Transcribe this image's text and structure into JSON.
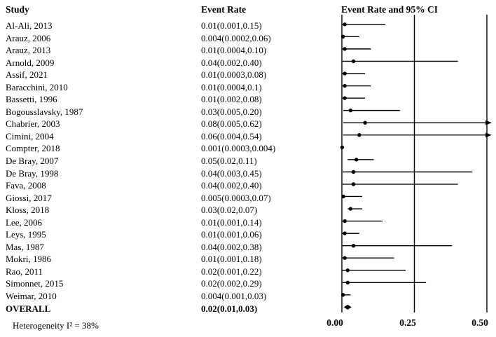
{
  "headers": {
    "study": "Study",
    "event_rate": "Event Rate",
    "plot": "Event Rate and 95% CI"
  },
  "footer": {
    "heterogeneity": "Heterogeneity I² = 38%"
  },
  "colors": {
    "ink": "#000000",
    "background": "#ffffff"
  },
  "chart_data": {
    "type": "forest",
    "title": "Event Rate and 95% CI",
    "axis": {
      "xlim": [
        0.0,
        0.5
      ],
      "ticks": [
        0.0,
        0.25,
        0.5
      ],
      "tick_labels": [
        "0.00",
        "0.25",
        "0.50"
      ],
      "clip_arrow_beyond": 0.5
    },
    "studies": [
      {
        "label": "Al-Ali, 2013",
        "text": "0.01(0.001,0.15)",
        "rate": 0.01,
        "lo": 0.001,
        "hi": 0.15
      },
      {
        "label": "Arauz, 2006",
        "text": "0.004(0.0002,0.06)",
        "rate": 0.004,
        "lo": 0.0002,
        "hi": 0.06
      },
      {
        "label": "Arauz, 2013",
        "text": "0.01(0.0004,0.10)",
        "rate": 0.01,
        "lo": 0.0004,
        "hi": 0.1
      },
      {
        "label": "Arnold, 2009",
        "text": "0.04(0.002,0.40)",
        "rate": 0.04,
        "lo": 0.002,
        "hi": 0.4
      },
      {
        "label": "Assif, 2021",
        "text": "0.01(0.0003,0.08)",
        "rate": 0.01,
        "lo": 0.0003,
        "hi": 0.08
      },
      {
        "label": "Baracchini, 2010",
        "text": "0.01(0.0004,0.1)",
        "rate": 0.01,
        "lo": 0.0004,
        "hi": 0.1
      },
      {
        "label": "Bassetti, 1996",
        "text": "0.01(0.002,0.08)",
        "rate": 0.01,
        "lo": 0.002,
        "hi": 0.08
      },
      {
        "label": "Bogousslavsky, 1987",
        "text": "0.03(0.005,0.20)",
        "rate": 0.03,
        "lo": 0.005,
        "hi": 0.2
      },
      {
        "label": "Chabrier, 2003",
        "text": "0.08(0.005,0.62)",
        "rate": 0.08,
        "lo": 0.005,
        "hi": 0.62
      },
      {
        "label": "Cimini, 2004",
        "text": "0.06(0.004,0.54)",
        "rate": 0.06,
        "lo": 0.004,
        "hi": 0.54
      },
      {
        "label": "Compter, 2018",
        "text": "0.001(0.0003,0.004)",
        "rate": 0.001,
        "lo": 0.0003,
        "hi": 0.004
      },
      {
        "label": "De Bray, 2007",
        "text": "0.05(0.02,0.11)",
        "rate": 0.05,
        "lo": 0.02,
        "hi": 0.11
      },
      {
        "label": "De Bray, 1998",
        "text": "0.04(0.003,0.45)",
        "rate": 0.04,
        "lo": 0.003,
        "hi": 0.45
      },
      {
        "label": "Fava, 2008",
        "text": "0.04(0.002,0.40)",
        "rate": 0.04,
        "lo": 0.002,
        "hi": 0.4
      },
      {
        "label": "Giossi, 2017",
        "text": "0.005(0.0003,0.07)",
        "rate": 0.005,
        "lo": 0.0003,
        "hi": 0.07
      },
      {
        "label": "Kloss, 2018",
        "text": "0.03(0.02,0.07)",
        "rate": 0.03,
        "lo": 0.02,
        "hi": 0.07
      },
      {
        "label": "Lee, 2006",
        "text": "0.01(0.001,0.14)",
        "rate": 0.01,
        "lo": 0.001,
        "hi": 0.14
      },
      {
        "label": "Leys, 1995",
        "text": "0.01(0.001,0.06)",
        "rate": 0.01,
        "lo": 0.001,
        "hi": 0.06
      },
      {
        "label": "Mas, 1987",
        "text": "0.04(0.002,0.38)",
        "rate": 0.04,
        "lo": 0.002,
        "hi": 0.38
      },
      {
        "label": "Mokri, 1986",
        "text": "0.01(0.001,0.18)",
        "rate": 0.01,
        "lo": 0.001,
        "hi": 0.18
      },
      {
        "label": "Rao, 2011",
        "text": "0.02(0.001,0.22)",
        "rate": 0.02,
        "lo": 0.001,
        "hi": 0.22
      },
      {
        "label": "Simonnet, 2015",
        "text": "0.02(0.002,0.29)",
        "rate": 0.02,
        "lo": 0.002,
        "hi": 0.29
      },
      {
        "label": "Weimar, 2010",
        "text": "0.004(0.001,0.03)",
        "rate": 0.004,
        "lo": 0.001,
        "hi": 0.03
      }
    ],
    "overall": {
      "label": "OVERALL",
      "text": "0.02(0.01,0.03)",
      "rate": 0.02,
      "lo": 0.01,
      "hi": 0.03
    }
  }
}
